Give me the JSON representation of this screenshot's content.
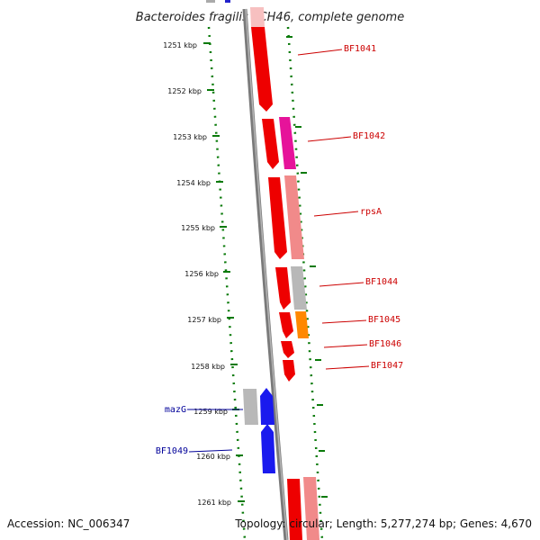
{
  "title": "Bacteroides fragilis YCH46, complete genome",
  "footer": {
    "accession": "Accession: NC_006347",
    "info": "Topology: circular; Length: 5,277,274 bp; Genes: 4,670"
  },
  "colors": {
    "backbone": "#888888",
    "tick": "#0a7a0a",
    "label_red": "#cc0000",
    "label_blue": "#000099"
  },
  "kbp_labels": [
    "1251 kbp",
    "1252 kbp",
    "1253 kbp",
    "1254 kbp",
    "1255 kbp",
    "1256 kbp",
    "1257 kbp",
    "1258 kbp",
    "1259 kbp",
    "1260 kbp",
    "1261 kbp"
  ],
  "gene_labels": [
    "BF1041",
    "BF1042",
    "rpsA",
    "BF1044",
    "BF1045",
    "BF1046",
    "BF1047",
    "mazG",
    "BF1049"
  ]
}
